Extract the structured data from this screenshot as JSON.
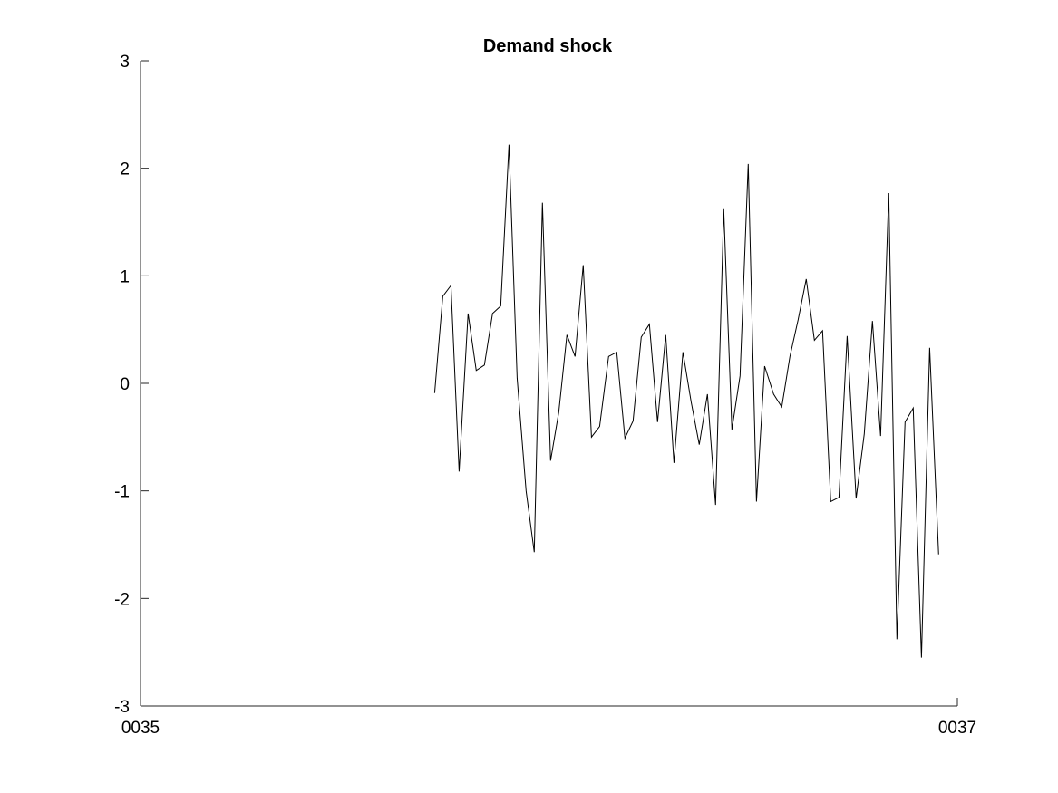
{
  "chart_data": {
    "type": "line",
    "title": "Demand shock",
    "xlabel": "",
    "ylabel": "",
    "xlim": [
      0,
      100
    ],
    "ylim": [
      -3,
      3
    ],
    "x_ticks": [
      {
        "value": 0,
        "label": "0035"
      },
      {
        "value": 100,
        "label": "0037"
      }
    ],
    "y_ticks": [
      {
        "value": 3,
        "label": "3"
      },
      {
        "value": 2,
        "label": "2"
      },
      {
        "value": 1,
        "label": "1"
      },
      {
        "value": 0,
        "label": "0"
      },
      {
        "value": -1,
        "label": "-1"
      },
      {
        "value": -2,
        "label": "-2"
      },
      {
        "value": -3,
        "label": "-3"
      }
    ],
    "grid": false,
    "box": false,
    "series": [
      {
        "color": "#000000",
        "x": [
          36.0,
          37.0,
          38.0,
          39.0,
          40.1,
          41.1,
          42.1,
          43.1,
          44.1,
          45.1,
          46.1,
          47.2,
          48.2,
          49.2,
          50.2,
          51.2,
          52.2,
          53.2,
          54.2,
          55.2,
          56.2,
          57.3,
          58.3,
          59.3,
          60.3,
          61.3,
          62.3,
          63.3,
          64.3,
          65.3,
          66.4,
          67.4,
          68.4,
          69.4,
          70.4,
          71.4,
          72.4,
          73.4,
          74.4,
          75.4,
          76.4,
          77.5,
          78.5,
          79.5,
          80.5,
          81.5,
          82.5,
          83.5,
          84.5,
          85.5,
          86.5,
          87.6,
          88.6,
          89.6,
          90.6,
          91.6,
          92.6,
          93.6,
          94.6,
          95.6,
          96.6,
          97.7,
          98.7
        ],
        "y": [
          -0.09,
          0.81,
          0.91,
          -0.82,
          0.65,
          0.12,
          0.17,
          0.65,
          0.72,
          2.22,
          0.05,
          -1.0,
          -1.57,
          1.68,
          -0.72,
          -0.27,
          0.45,
          0.25,
          1.1,
          -0.5,
          -0.4,
          0.25,
          0.29,
          -0.51,
          -0.35,
          0.43,
          0.55,
          -0.36,
          0.45,
          -0.74,
          0.29,
          -0.17,
          -0.57,
          -0.1,
          -1.13,
          1.62,
          -0.43,
          0.07,
          2.04,
          -1.1,
          0.16,
          -0.1,
          -0.22,
          0.25,
          0.59,
          0.97,
          0.4,
          0.49,
          -1.1,
          -1.06,
          0.44,
          -1.07,
          -0.47,
          0.58,
          -0.49,
          1.77,
          -2.38,
          -0.36,
          -0.23,
          -2.55,
          0.33,
          -1.59,
          null
        ]
      }
    ]
  }
}
